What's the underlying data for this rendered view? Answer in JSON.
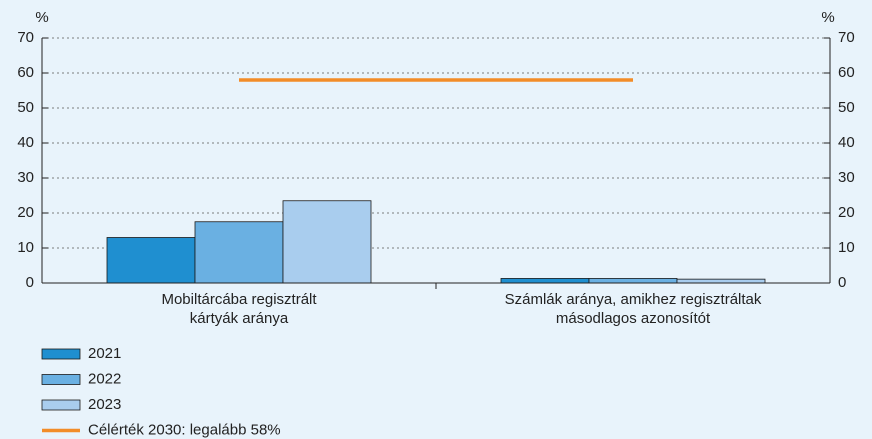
{
  "chart_data": {
    "type": "bar",
    "ylabel": "%",
    "y2label": "%",
    "categories": [
      [
        "Mobiltárcába regisztrált",
        "kártyák aránya"
      ],
      [
        "Számlák aránya, amikhez regisztráltak",
        "másodlagos azonosítót"
      ]
    ],
    "series": [
      {
        "name": "2021",
        "color": "#1f8fd0",
        "values": [
          13,
          1.3
        ]
      },
      {
        "name": "2022",
        "color": "#6ab0e2",
        "values": [
          17.5,
          1.3
        ]
      },
      {
        "name": "2023",
        "color": "#a9cdee",
        "values": [
          23.5,
          1.1
        ]
      },
      {
        "name": "Célérték 2030: legalább 58%",
        "type": "line",
        "color": "#f28c28",
        "values": [
          58,
          58
        ]
      }
    ],
    "ylim": [
      0,
      70
    ],
    "yticks": [
      0,
      10,
      20,
      30,
      40,
      50,
      60,
      70
    ],
    "y2lim": [
      0,
      70
    ],
    "y2ticks": [
      0,
      10,
      20,
      30,
      40,
      50,
      60,
      70
    ],
    "grid": true,
    "legend": "bottom-left"
  }
}
